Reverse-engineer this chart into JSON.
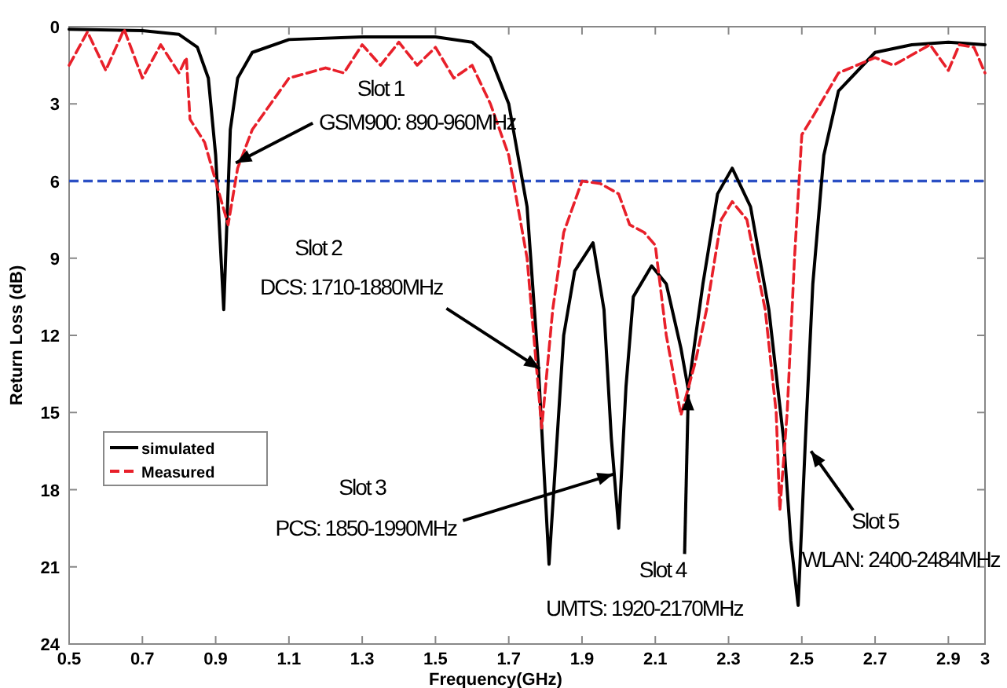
{
  "chart_data": {
    "type": "line",
    "xlabel": "Frequency(GHz)",
    "ylabel": "Return Loss (dB)",
    "xlim": [
      0.5,
      3.0
    ],
    "xticks": [
      0.5,
      0.7,
      0.9,
      1.1,
      1.3,
      1.5,
      1.7,
      1.9,
      2.1,
      2.3,
      2.5,
      2.7,
      2.9,
      {
        "value": 3.0,
        "label": "3"
      }
    ],
    "ylim": [
      24,
      0
    ],
    "yticks": [
      0,
      3,
      6,
      9,
      12,
      15,
      18,
      21,
      24
    ],
    "grid": false,
    "legend": "left",
    "series": [
      {
        "name": "simulated",
        "color": "#000000",
        "line_style": "solid",
        "x": [
          0.5,
          0.7,
          0.8,
          0.85,
          0.88,
          0.9,
          0.922,
          0.94,
          0.96,
          1.0,
          1.1,
          1.3,
          1.5,
          1.6,
          1.65,
          1.7,
          1.75,
          1.78,
          1.81,
          1.85,
          1.88,
          1.93,
          1.96,
          1.98,
          2.0,
          2.02,
          2.04,
          2.09,
          2.13,
          2.17,
          2.19,
          2.23,
          2.27,
          2.31,
          2.36,
          2.41,
          2.45,
          2.47,
          2.49,
          2.51,
          2.53,
          2.56,
          2.6,
          2.7,
          2.8,
          2.9,
          3.0
        ],
        "values": [
          0.1,
          0.15,
          0.3,
          0.8,
          2,
          5,
          11,
          4,
          2,
          1,
          0.5,
          0.4,
          0.4,
          0.6,
          1.2,
          3,
          7,
          13,
          20.9,
          12,
          9.5,
          8.4,
          11,
          16,
          19.5,
          14,
          10.5,
          9.3,
          10,
          12.5,
          14.1,
          10,
          6.5,
          5.5,
          7,
          11,
          16,
          20,
          22.5,
          16,
          10,
          5,
          2.5,
          1,
          0.7,
          0.6,
          0.7
        ]
      },
      {
        "name": "Measured",
        "color": "#e8202a",
        "line_style": "dashed",
        "x": [
          0.5,
          0.55,
          0.6,
          0.65,
          0.7,
          0.75,
          0.8,
          0.82,
          0.83,
          0.87,
          0.9,
          0.934,
          0.96,
          1.0,
          1.05,
          1.1,
          1.2,
          1.25,
          1.3,
          1.35,
          1.4,
          1.45,
          1.5,
          1.55,
          1.6,
          1.65,
          1.7,
          1.75,
          1.79,
          1.82,
          1.85,
          1.9,
          1.95,
          2.0,
          2.03,
          2.07,
          2.1,
          2.13,
          2.17,
          2.21,
          2.24,
          2.28,
          2.31,
          2.35,
          2.4,
          2.43,
          2.44,
          2.46,
          2.48,
          2.5,
          2.53,
          2.6,
          2.7,
          2.75,
          2.8,
          2.85,
          2.9,
          2.93,
          2.97,
          3.0
        ],
        "values": [
          1.5,
          0.2,
          1.7,
          0.1,
          2.0,
          0.7,
          1.8,
          1.2,
          3.6,
          4.5,
          6,
          7.7,
          5.5,
          4,
          3,
          2,
          1.6,
          1.8,
          0.7,
          1.5,
          0.6,
          1.5,
          0.8,
          2,
          1.5,
          3,
          5,
          9,
          15.6,
          11,
          8,
          6,
          6.1,
          6.5,
          7.7,
          8,
          8.5,
          12,
          15.1,
          13,
          11,
          7.5,
          6.8,
          7.5,
          11,
          15,
          18.8,
          15,
          9,
          4.2,
          3.5,
          1.8,
          1.2,
          1.5,
          1.1,
          0.7,
          1.7,
          0.7,
          0.8,
          1.8
        ]
      }
    ],
    "ref_lines": [
      {
        "axis": "y",
        "value": 6,
        "color": "#2b4fc4",
        "line_style": "dashed"
      }
    ],
    "annotations": [
      "Slot 1",
      {
        "text": "GSM900: 890-960MHz",
        "x": 0.955,
        "y": 5.3
      },
      "Slot 2",
      {
        "text": "DCS: 1710-1880MHz",
        "x": 1.785,
        "y": 13.3
      },
      "Slot 3",
      {
        "text": "PCS: 1850-1990MHz",
        "x": 1.985,
        "y": 17.4
      },
      {
        "text": "Slot 4",
        "x": 2.19,
        "y": 14.3
      },
      "UMTS: 1920-2170MHz",
      {
        "text": "Slot 5",
        "x": 2.525,
        "y": 16.5
      },
      "WLAN: 2400-2484MHz"
    ]
  }
}
